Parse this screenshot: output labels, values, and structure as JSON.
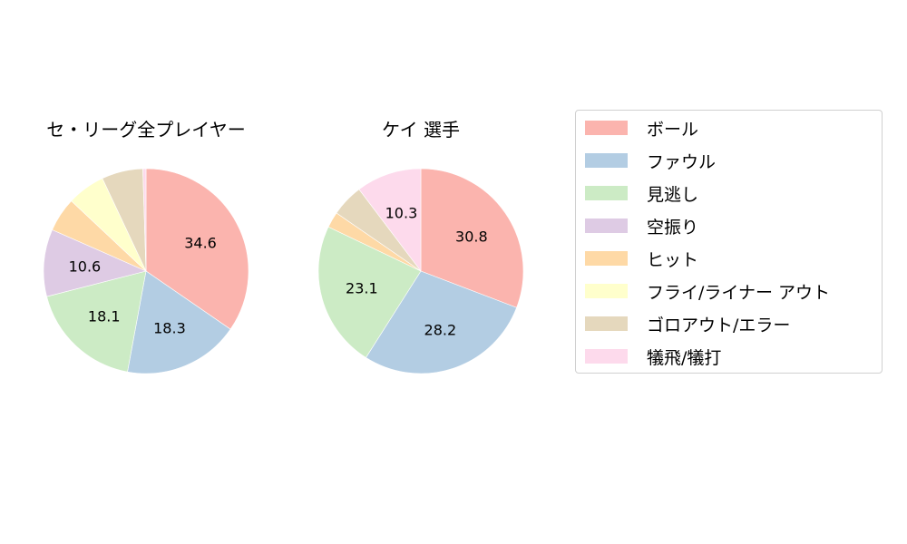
{
  "legend": {
    "items": [
      {
        "label": "ボール",
        "color": "#fbb4ae"
      },
      {
        "label": "ファウル",
        "color": "#b3cde3"
      },
      {
        "label": "見逃し",
        "color": "#ccebc5"
      },
      {
        "label": "空振り",
        "color": "#decbe4"
      },
      {
        "label": "ヒット",
        "color": "#fed9a6"
      },
      {
        "label": "フライ/ライナー アウト",
        "color": "#ffffcc"
      },
      {
        "label": "ゴロアウト/エラー",
        "color": "#e5d8bd"
      },
      {
        "label": "犠飛/犠打",
        "color": "#fddaec"
      }
    ]
  },
  "chart_data": [
    {
      "type": "pie",
      "title": "セ・リーグ全プレイヤー",
      "categories": [
        "ボール",
        "ファウル",
        "見逃し",
        "空振り",
        "ヒット",
        "フライ/ライナー アウト",
        "ゴロアウト/エラー",
        "犠飛/犠打"
      ],
      "values": [
        34.6,
        18.3,
        18.1,
        10.6,
        5.4,
        6.0,
        6.5,
        0.5
      ],
      "labels_shown": [
        "34.6",
        "18.3",
        "18.1",
        "10.6",
        "",
        "",
        "",
        ""
      ],
      "start_angle": 90,
      "direction": "clockwise"
    },
    {
      "type": "pie",
      "title": "ケイ  選手",
      "categories": [
        "ボール",
        "ファウル",
        "見逃し",
        "空振り",
        "ヒット",
        "フライ/ライナー アウト",
        "ゴロアウト/エラー",
        "犠飛/犠打"
      ],
      "values": [
        30.8,
        28.2,
        23.1,
        0.0,
        2.5,
        0.0,
        5.1,
        10.3
      ],
      "labels_shown": [
        "30.8",
        "28.2",
        "23.1",
        "",
        "",
        "",
        "",
        "10.3"
      ],
      "start_angle": 90,
      "direction": "clockwise"
    }
  ]
}
